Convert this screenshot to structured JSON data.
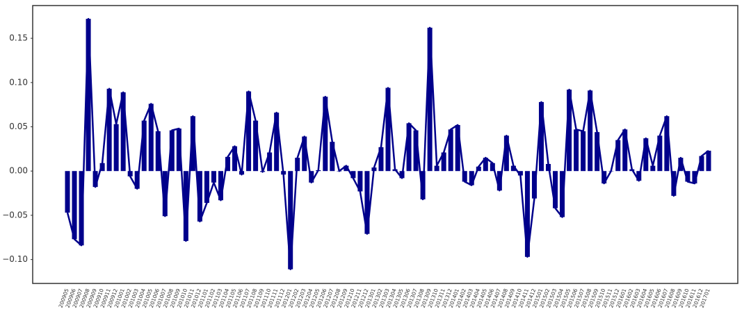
{
  "chart_data": {
    "type": "bar",
    "overlay_line": true,
    "color": "#00008b",
    "grid": false,
    "categories": [
      "200905",
      "200906",
      "200907",
      "200908",
      "200909",
      "200910",
      "200911",
      "200912",
      "201001",
      "201002",
      "201003",
      "201004",
      "201005",
      "201006",
      "201007",
      "201008",
      "201009",
      "201010",
      "201011",
      "201012",
      "201101",
      "201102",
      "201103",
      "201104",
      "201105",
      "201106",
      "201107",
      "201108",
      "201109",
      "201110",
      "201111",
      "201112",
      "201201",
      "201202",
      "201203",
      "201204",
      "201205",
      "201206",
      "201207",
      "201208",
      "201209",
      "201210",
      "201211",
      "201212",
      "201301",
      "201302",
      "201303",
      "201304",
      "201305",
      "201306",
      "201307",
      "201308",
      "201309",
      "201310",
      "201311",
      "201312",
      "201401",
      "201402",
      "201403",
      "201404",
      "201405",
      "201406",
      "201407",
      "201408",
      "201409",
      "201410",
      "201411",
      "201412",
      "201501",
      "201502",
      "201503",
      "201504",
      "201505",
      "201506",
      "201507",
      "201508",
      "201509",
      "201510",
      "201511",
      "201512",
      "201601",
      "201602",
      "201603",
      "201604",
      "201605",
      "201606",
      "201607",
      "201608",
      "201609",
      "201610",
      "201611",
      "201612",
      "201701"
    ],
    "values": [
      -0.047,
      -0.077,
      -0.084,
      0.172,
      -0.018,
      0.009,
      0.093,
      0.053,
      0.089,
      -0.006,
      -0.02,
      0.057,
      0.076,
      0.045,
      -0.051,
      0.046,
      0.048,
      -0.079,
      0.062,
      -0.057,
      -0.036,
      -0.013,
      -0.033,
      0.016,
      0.028,
      -0.004,
      0.09,
      0.057,
      -0.001,
      0.021,
      0.066,
      -0.004,
      -0.111,
      0.015,
      0.039,
      -0.013,
      0.001,
      0.084,
      0.033,
      0.0,
      0.006,
      -0.008,
      -0.023,
      -0.071,
      0.004,
      0.027,
      0.094,
      0.002,
      -0.008,
      0.054,
      0.046,
      -0.032,
      0.162,
      0.006,
      0.021,
      0.047,
      0.052,
      -0.012,
      -0.016,
      0.005,
      0.015,
      0.009,
      -0.022,
      0.04,
      0.006,
      -0.005,
      -0.097,
      -0.031,
      0.078,
      0.008,
      -0.042,
      -0.052,
      0.092,
      0.047,
      0.045,
      0.091,
      0.044,
      -0.014,
      0.0,
      0.035,
      0.047,
      0.002,
      -0.011,
      0.037,
      0.006,
      0.04,
      0.062,
      -0.028,
      0.015,
      -0.012,
      -0.014,
      0.017,
      0.023
    ],
    "ylim": [
      -0.127,
      0.187
    ],
    "yticks": [
      {
        "value": -0.1,
        "label": "−0.10"
      },
      {
        "value": -0.05,
        "label": "−0.05"
      },
      {
        "value": 0,
        "label": "0.00"
      },
      {
        "value": 0.05,
        "label": "0.05"
      },
      {
        "value": 0.1,
        "label": "0.10"
      },
      0.15
    ]
  }
}
